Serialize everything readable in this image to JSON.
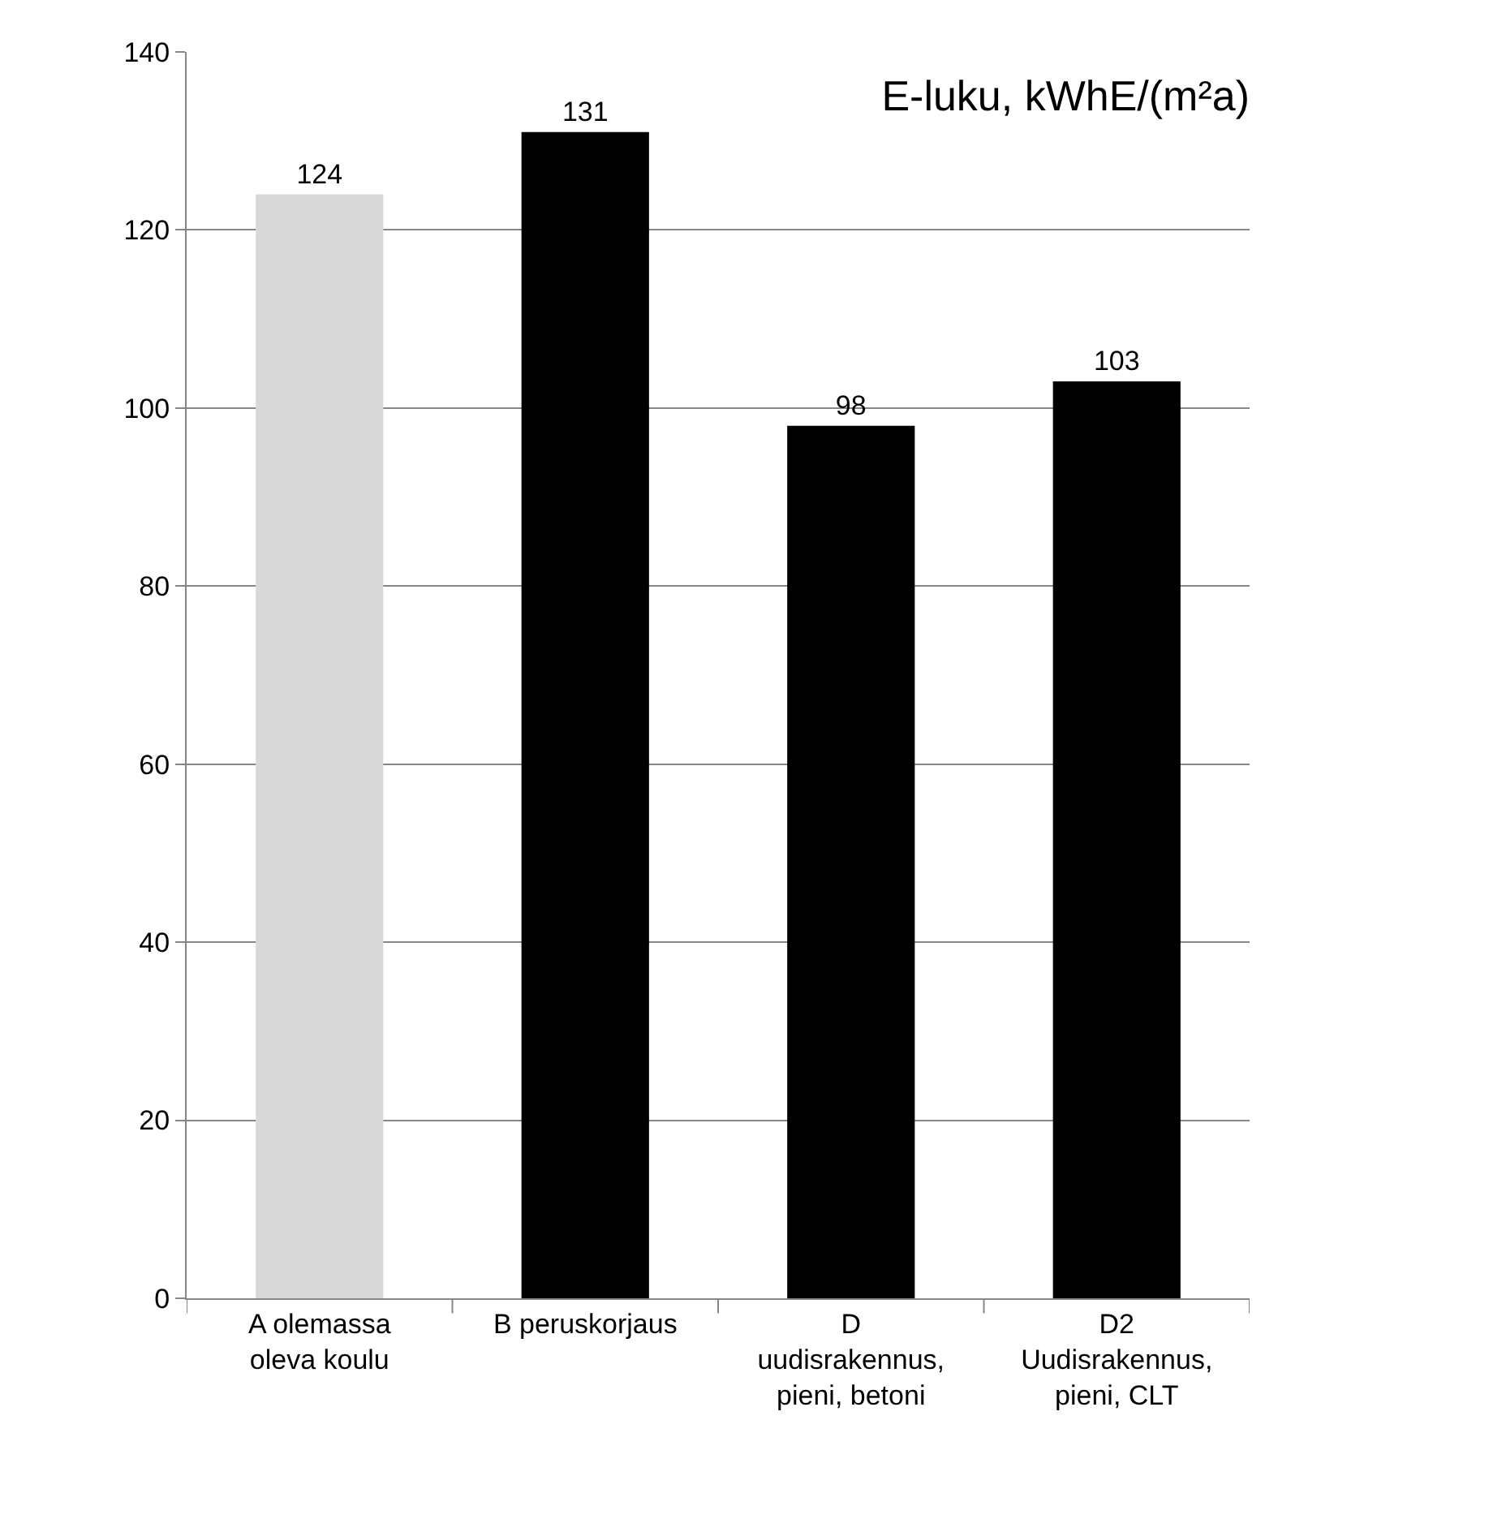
{
  "chart_data": {
    "type": "bar",
    "title": "E-luku, kWhE/(m²a)",
    "categories": [
      "A olemassa oleva koulu",
      "B peruskorjaus",
      "D uudisrakennus, pieni, betoni",
      "D2 Uudisrakennus, pieni, CLT"
    ],
    "values": [
      124,
      131,
      98,
      103
    ],
    "colors": [
      "#d9d9d9",
      "#000000",
      "#000000",
      "#000000"
    ],
    "ylim": [
      0,
      140
    ],
    "yticks": [
      0,
      20,
      40,
      60,
      80,
      100,
      120,
      140
    ],
    "grid": "y",
    "data_labels": true
  }
}
